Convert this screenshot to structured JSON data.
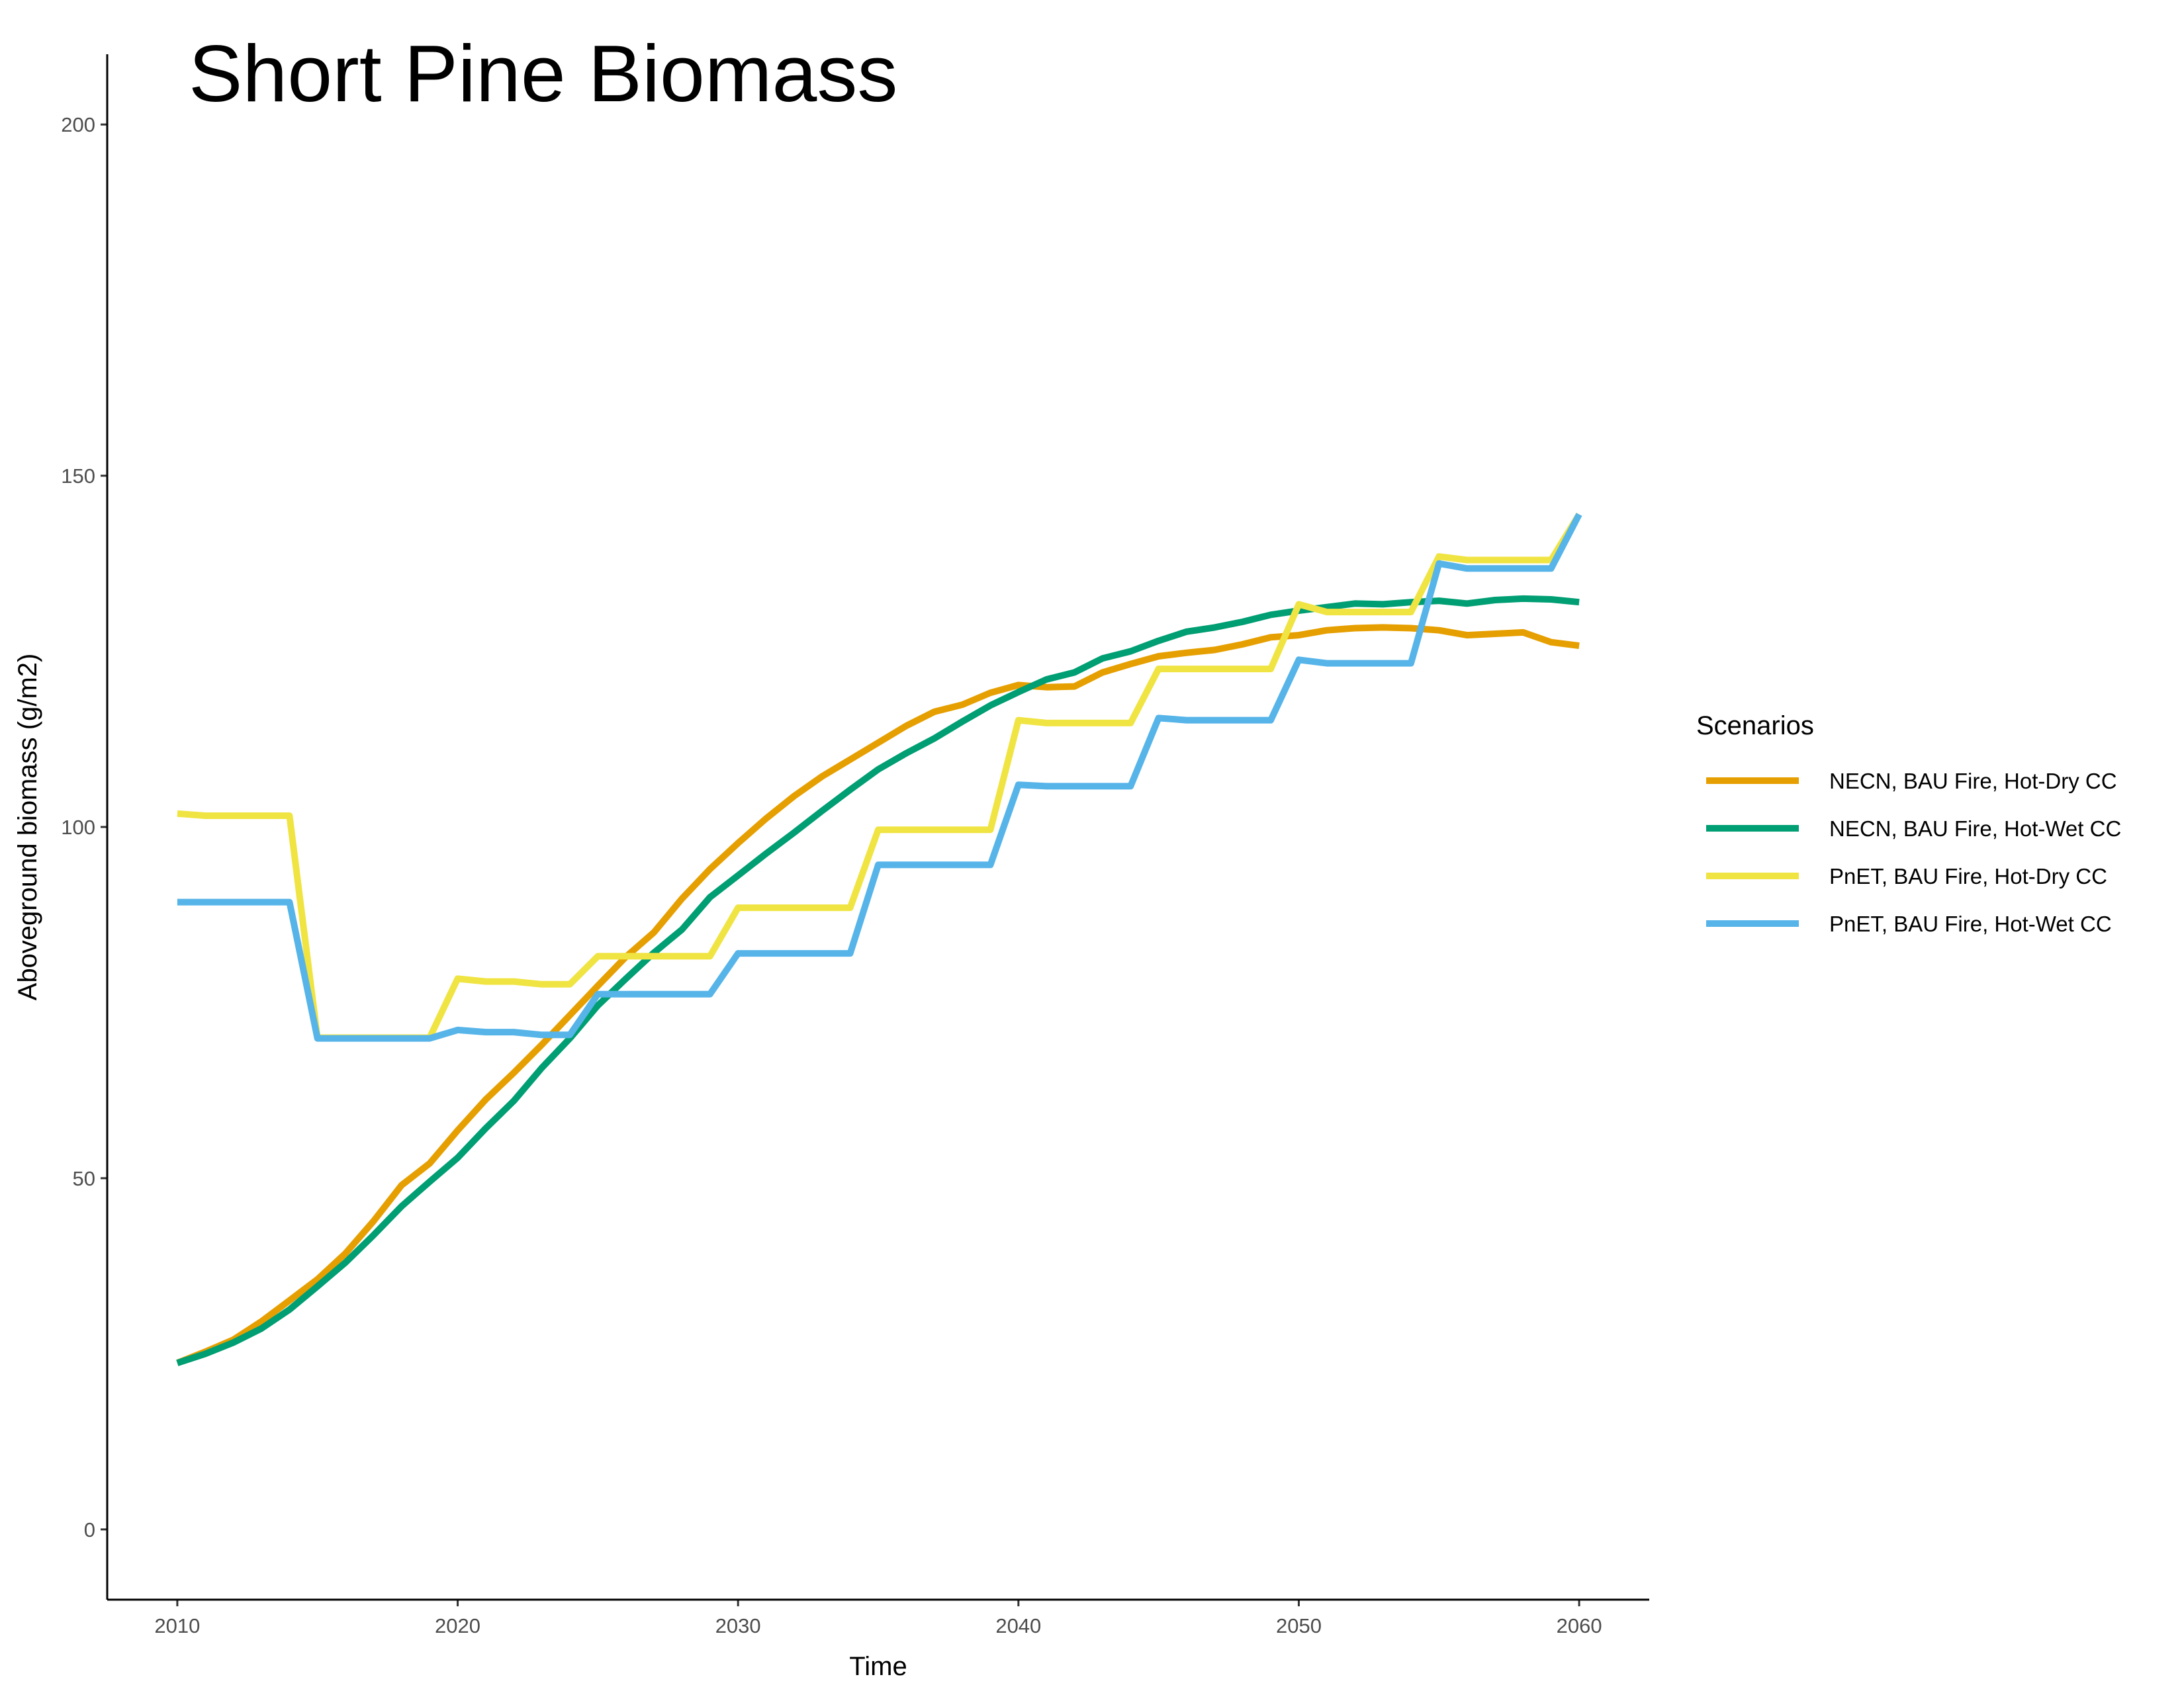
{
  "chart_data": {
    "type": "line",
    "title": "Short Pine Biomass",
    "xlabel": "Time",
    "ylabel": "Aboveground biomass (g/m2)",
    "xlim": [
      2007.5,
      2062.5
    ],
    "ylim": [
      -10,
      210
    ],
    "x_ticks": [
      2010,
      2020,
      2030,
      2040,
      2050,
      2060
    ],
    "y_ticks": [
      0,
      50,
      100,
      150,
      200
    ],
    "grid": false,
    "legend": {
      "title": "Scenarios",
      "position": "right"
    },
    "x": [
      2010,
      2011,
      2012,
      2013,
      2014,
      2015,
      2016,
      2017,
      2018,
      2019,
      2020,
      2021,
      2022,
      2023,
      2024,
      2025,
      2026,
      2027,
      2028,
      2029,
      2030,
      2031,
      2032,
      2033,
      2034,
      2035,
      2036,
      2037,
      2038,
      2039,
      2040,
      2041,
      2042,
      2043,
      2044,
      2045,
      2046,
      2047,
      2048,
      2049,
      2050,
      2051,
      2052,
      2053,
      2054,
      2055,
      2056,
      2057,
      2058,
      2059,
      2060
    ],
    "series": [
      {
        "name": "NECN, BAU Fire, Hot-Dry CC",
        "color": "#E69F00",
        "values": [
          23.7,
          25.3,
          27.0,
          29.6,
          32.6,
          35.6,
          39.3,
          43.9,
          49.0,
          52.1,
          56.8,
          61.2,
          65.0,
          69.0,
          73.2,
          77.4,
          81.5,
          85.0,
          89.8,
          94.0,
          97.7,
          101.2,
          104.4,
          107.2,
          109.6,
          112.0,
          114.4,
          116.4,
          117.4,
          119.1,
          120.2,
          119.9,
          120.0,
          122.0,
          123.2,
          124.3,
          124.8,
          125.2,
          126.0,
          127.0,
          127.3,
          128.0,
          128.3,
          128.4,
          128.3,
          128.0,
          127.3,
          127.5,
          127.7,
          126.3,
          125.8
        ]
      },
      {
        "name": "NECN, BAU Fire, Hot-Wet CC",
        "color": "#009E73",
        "values": [
          23.7,
          25.0,
          26.6,
          28.6,
          31.3,
          34.6,
          38.0,
          41.9,
          46.0,
          49.5,
          52.9,
          57.1,
          61.0,
          65.7,
          69.9,
          74.6,
          78.4,
          82.1,
          85.4,
          90.0,
          93.1,
          96.2,
          99.2,
          102.3,
          105.3,
          108.2,
          110.5,
          112.6,
          115.0,
          117.3,
          119.2,
          121.0,
          122.0,
          124.0,
          125.0,
          126.5,
          127.8,
          128.4,
          129.2,
          130.2,
          130.8,
          131.3,
          131.8,
          131.7,
          132.0,
          132.2,
          131.8,
          132.3,
          132.5,
          132.4,
          132.0
        ]
      },
      {
        "name": "PnET, BAU Fire, Hot-Dry CC",
        "color": "#F0E442",
        "values": [
          101.9,
          101.6,
          101.6,
          101.6,
          101.6,
          70.0,
          70.0,
          70.0,
          70.0,
          70.0,
          78.4,
          78.0,
          78.0,
          77.6,
          77.6,
          81.6,
          81.6,
          81.6,
          81.6,
          81.6,
          88.5,
          88.5,
          88.5,
          88.5,
          88.5,
          99.6,
          99.6,
          99.6,
          99.6,
          99.6,
          115.2,
          114.8,
          114.8,
          114.8,
          114.8,
          122.5,
          122.5,
          122.5,
          122.5,
          122.5,
          131.7,
          130.6,
          130.6,
          130.6,
          130.6,
          138.5,
          138.0,
          138.0,
          138.0,
          138.0,
          144.5
        ]
      },
      {
        "name": "PnET, BAU Fire, Hot-Wet CC",
        "color": "#56B4E9",
        "values": [
          89.3,
          89.3,
          89.3,
          89.3,
          89.3,
          69.9,
          69.9,
          69.9,
          69.9,
          69.9,
          71.1,
          70.8,
          70.8,
          70.4,
          70.4,
          76.2,
          76.2,
          76.2,
          76.2,
          76.2,
          82.0,
          82.0,
          82.0,
          82.0,
          82.0,
          94.6,
          94.6,
          94.6,
          94.6,
          94.6,
          106.0,
          105.8,
          105.8,
          105.8,
          105.8,
          115.5,
          115.2,
          115.2,
          115.2,
          115.2,
          123.8,
          123.3,
          123.3,
          123.3,
          123.3,
          137.5,
          136.8,
          136.8,
          136.8,
          136.8,
          144.5
        ]
      }
    ]
  }
}
